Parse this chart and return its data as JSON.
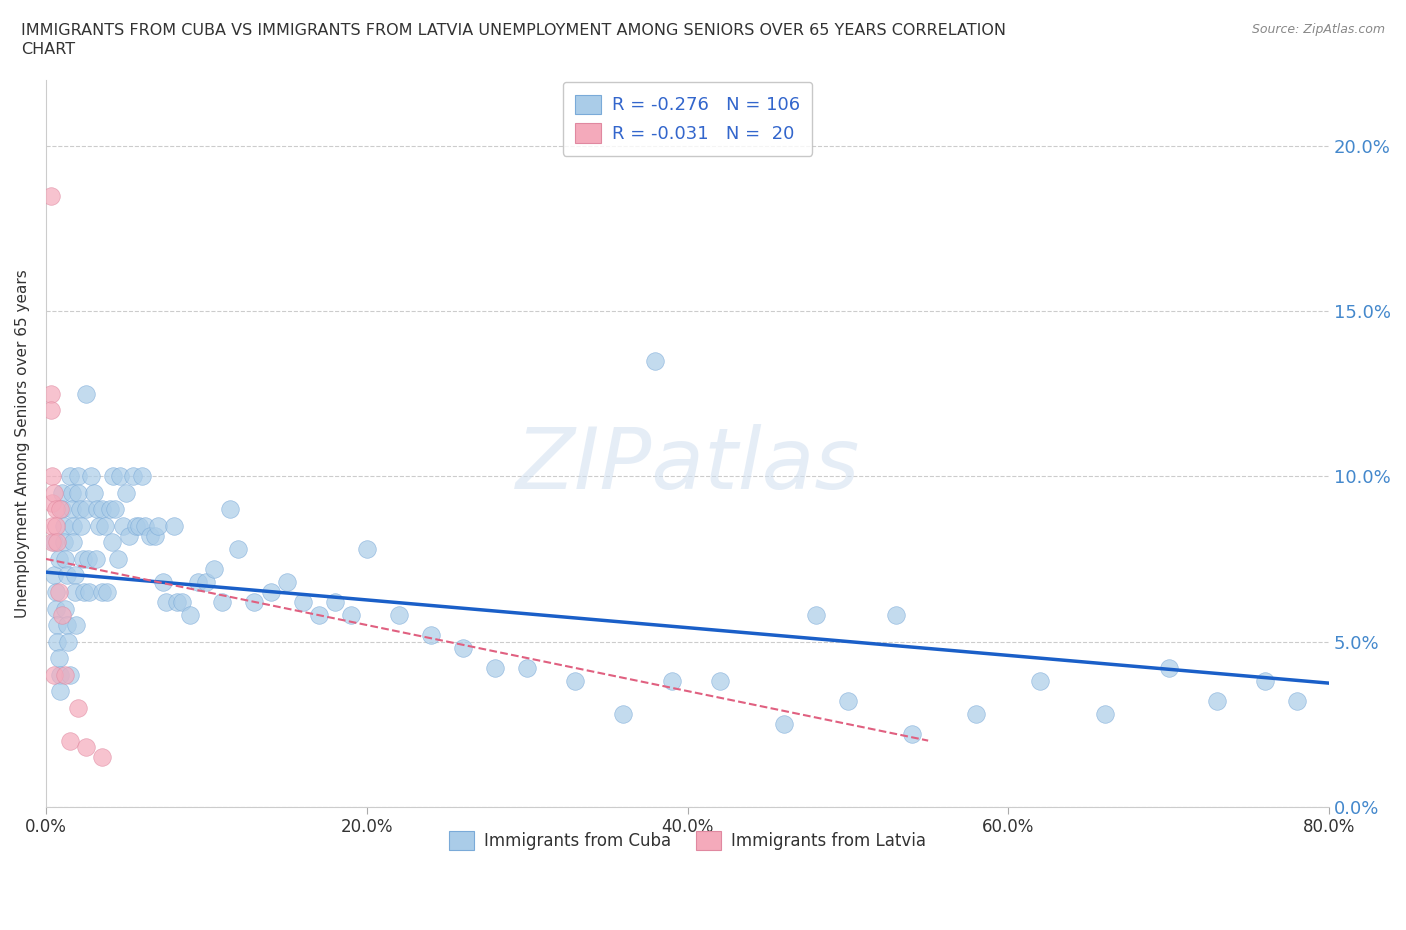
{
  "title_line1": "IMMIGRANTS FROM CUBA VS IMMIGRANTS FROM LATVIA UNEMPLOYMENT AMONG SENIORS OVER 65 YEARS CORRELATION",
  "title_line2": "CHART",
  "source": "Source: ZipAtlas.com",
  "ylabel": "Unemployment Among Seniors over 65 years",
  "xlim": [
    0,
    0.8
  ],
  "ylim": [
    0,
    0.22
  ],
  "watermark": "ZIPatlas",
  "cuba_R": -0.276,
  "cuba_N": 106,
  "latvia_R": -0.031,
  "latvia_N": 20,
  "cuba_color": "#aacce8",
  "latvia_color": "#f4aabb",
  "cuba_line_color": "#1a5fc8",
  "latvia_line_color": "#e06080",
  "legend_text_color": "#3366cc",
  "background_color": "#ffffff",
  "grid_color": "#cccccc",
  "ytick_color": "#4488cc",
  "cuba_line_intercept": 0.071,
  "cuba_line_slope": -0.042,
  "latvia_line_intercept": 0.075,
  "latvia_line_slope": -0.1,
  "cuba_x": [
    0.005,
    0.005,
    0.006,
    0.006,
    0.007,
    0.007,
    0.008,
    0.008,
    0.009,
    0.009,
    0.01,
    0.01,
    0.011,
    0.011,
    0.012,
    0.012,
    0.013,
    0.013,
    0.014,
    0.015,
    0.015,
    0.016,
    0.016,
    0.017,
    0.017,
    0.018,
    0.018,
    0.019,
    0.02,
    0.02,
    0.021,
    0.022,
    0.023,
    0.024,
    0.025,
    0.025,
    0.026,
    0.027,
    0.028,
    0.03,
    0.031,
    0.032,
    0.033,
    0.035,
    0.035,
    0.037,
    0.038,
    0.04,
    0.041,
    0.042,
    0.043,
    0.045,
    0.046,
    0.048,
    0.05,
    0.052,
    0.054,
    0.056,
    0.058,
    0.06,
    0.062,
    0.065,
    0.068,
    0.07,
    0.073,
    0.075,
    0.08,
    0.082,
    0.085,
    0.09,
    0.095,
    0.1,
    0.105,
    0.11,
    0.115,
    0.12,
    0.13,
    0.14,
    0.15,
    0.16,
    0.17,
    0.18,
    0.19,
    0.2,
    0.22,
    0.24,
    0.26,
    0.28,
    0.3,
    0.33,
    0.36,
    0.39,
    0.42,
    0.46,
    0.5,
    0.54,
    0.58,
    0.62,
    0.66,
    0.7,
    0.73,
    0.76,
    0.78,
    0.38,
    0.48,
    0.53
  ],
  "cuba_y": [
    0.08,
    0.07,
    0.065,
    0.06,
    0.055,
    0.05,
    0.075,
    0.045,
    0.04,
    0.035,
    0.095,
    0.09,
    0.085,
    0.08,
    0.075,
    0.06,
    0.07,
    0.055,
    0.05,
    0.04,
    0.1,
    0.095,
    0.09,
    0.085,
    0.08,
    0.07,
    0.065,
    0.055,
    0.1,
    0.095,
    0.09,
    0.085,
    0.075,
    0.065,
    0.125,
    0.09,
    0.075,
    0.065,
    0.1,
    0.095,
    0.075,
    0.09,
    0.085,
    0.065,
    0.09,
    0.085,
    0.065,
    0.09,
    0.08,
    0.1,
    0.09,
    0.075,
    0.1,
    0.085,
    0.095,
    0.082,
    0.1,
    0.085,
    0.085,
    0.1,
    0.085,
    0.082,
    0.082,
    0.085,
    0.068,
    0.062,
    0.085,
    0.062,
    0.062,
    0.058,
    0.068,
    0.068,
    0.072,
    0.062,
    0.09,
    0.078,
    0.062,
    0.065,
    0.068,
    0.062,
    0.058,
    0.062,
    0.058,
    0.078,
    0.058,
    0.052,
    0.048,
    0.042,
    0.042,
    0.038,
    0.028,
    0.038,
    0.038,
    0.025,
    0.032,
    0.022,
    0.028,
    0.038,
    0.028,
    0.042,
    0.032,
    0.038,
    0.032,
    0.135,
    0.058,
    0.058
  ],
  "latvia_x": [
    0.003,
    0.003,
    0.003,
    0.004,
    0.004,
    0.004,
    0.004,
    0.005,
    0.005,
    0.006,
    0.006,
    0.007,
    0.008,
    0.009,
    0.01,
    0.012,
    0.015,
    0.02,
    0.025,
    0.035
  ],
  "latvia_y": [
    0.185,
    0.125,
    0.12,
    0.1,
    0.092,
    0.085,
    0.08,
    0.095,
    0.04,
    0.09,
    0.085,
    0.08,
    0.065,
    0.09,
    0.058,
    0.04,
    0.02,
    0.03,
    0.018,
    0.015
  ]
}
